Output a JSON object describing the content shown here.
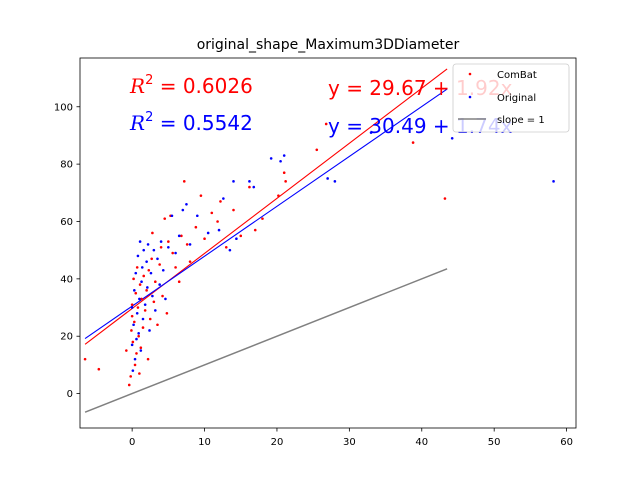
{
  "chart_data": {
    "type": "scatter",
    "title": "original_shape_Maximum3DDiameter",
    "xlabel": "",
    "ylabel": "",
    "xlim": [
      -7.2,
      61.3
    ],
    "ylim": [
      -12,
      117
    ],
    "xticks": [
      0,
      10,
      20,
      30,
      40,
      50,
      60
    ],
    "yticks": [
      0,
      20,
      40,
      60,
      80,
      100
    ],
    "xtick_labels": [
      "0",
      "10",
      "20",
      "30",
      "40",
      "50",
      "60"
    ],
    "ytick_labels": [
      "0",
      "20",
      "40",
      "60",
      "80",
      "100"
    ],
    "grid": false,
    "legend_position": "top-right",
    "legend": [
      {
        "label": "ComBat",
        "color": "#ff0000",
        "kind": "marker"
      },
      {
        "label": "Original",
        "color": "#0000ff",
        "kind": "marker"
      },
      {
        "label": "slope = 1",
        "color": "#808080",
        "kind": "line"
      }
    ],
    "annotations": {
      "r2_combat": {
        "prefix": "R",
        "sup": "2",
        "value": " = 0.6026",
        "color": "#ff0000"
      },
      "r2_original": {
        "prefix": "R",
        "sup": "2",
        "value": " = 0.5542",
        "color": "#0000ff"
      },
      "eq_combat": {
        "text": "y = 29.67 + 1.92x",
        "color": "#ff0000"
      },
      "eq_original": {
        "text": "y = 30.49 + 1.74x",
        "color": "#0000ff"
      }
    },
    "fit_lines": [
      {
        "name": "ComBat",
        "color": "#ff0000",
        "intercept": 29.67,
        "slope": 1.92,
        "x_range": [
          -6.5,
          43.5
        ]
      },
      {
        "name": "Original",
        "color": "#0000ff",
        "intercept": 30.49,
        "slope": 1.74,
        "x_range": [
          -6.5,
          43.5
        ]
      },
      {
        "name": "slope = 1",
        "color": "#808080",
        "intercept": 0,
        "slope": 1,
        "x_range": [
          -6.5,
          43.5
        ]
      }
    ],
    "series": [
      {
        "name": "ComBat",
        "color": "#ff0000",
        "points": [
          [
            -6.5,
            12
          ],
          [
            -4.6,
            8.5
          ],
          [
            -0.8,
            15
          ],
          [
            -0.4,
            3
          ],
          [
            -0.2,
            6
          ],
          [
            -0.1,
            22
          ],
          [
            0,
            27
          ],
          [
            0,
            31
          ],
          [
            0.1,
            18
          ],
          [
            0.2,
            40
          ],
          [
            0.3,
            25
          ],
          [
            0.4,
            10
          ],
          [
            0.5,
            35
          ],
          [
            0.6,
            14
          ],
          [
            0.7,
            44
          ],
          [
            0.8,
            30
          ],
          [
            0.9,
            20
          ],
          [
            1.0,
            7
          ],
          [
            1.1,
            38
          ],
          [
            1.2,
            16
          ],
          [
            1.3,
            33
          ],
          [
            1.5,
            23
          ],
          [
            1.6,
            41
          ],
          [
            1.8,
            29
          ],
          [
            2.0,
            36
          ],
          [
            2.2,
            12
          ],
          [
            2.3,
            43
          ],
          [
            2.5,
            26
          ],
          [
            2.7,
            47
          ],
          [
            2.8,
            56
          ],
          [
            3.0,
            32
          ],
          [
            3.2,
            39
          ],
          [
            3.5,
            24
          ],
          [
            3.8,
            45
          ],
          [
            4.0,
            51
          ],
          [
            4.2,
            34
          ],
          [
            4.5,
            61
          ],
          [
            4.8,
            28
          ],
          [
            5.0,
            53
          ],
          [
            5.3,
            62
          ],
          [
            5.6,
            49
          ],
          [
            6.0,
            44
          ],
          [
            6.5,
            39
          ],
          [
            6.8,
            55
          ],
          [
            7.2,
            74
          ],
          [
            7.6,
            52
          ],
          [
            8.0,
            46
          ],
          [
            8.8,
            58
          ],
          [
            9.5,
            69
          ],
          [
            10.0,
            54
          ],
          [
            11.0,
            63
          ],
          [
            11.8,
            60
          ],
          [
            12.2,
            67
          ],
          [
            13.0,
            51
          ],
          [
            14.0,
            64
          ],
          [
            15.0,
            55
          ],
          [
            16.2,
            72
          ],
          [
            17.0,
            57
          ],
          [
            18.0,
            61
          ],
          [
            20.2,
            69
          ],
          [
            21.0,
            77
          ],
          [
            21.2,
            74
          ],
          [
            25.5,
            85
          ],
          [
            26.8,
            94
          ],
          [
            38.8,
            87.5
          ],
          [
            43.2,
            68
          ]
        ]
      },
      {
        "name": "Original",
        "color": "#0000ff",
        "points": [
          [
            0,
            17
          ],
          [
            0,
            30
          ],
          [
            0.1,
            8
          ],
          [
            0.2,
            24
          ],
          [
            0.3,
            36
          ],
          [
            0.4,
            12
          ],
          [
            0.5,
            42
          ],
          [
            0.6,
            19
          ],
          [
            0.7,
            28
          ],
          [
            0.8,
            48
          ],
          [
            0.9,
            21
          ],
          [
            1.0,
            33
          ],
          [
            1.1,
            53
          ],
          [
            1.2,
            15
          ],
          [
            1.3,
            39
          ],
          [
            1.4,
            44
          ],
          [
            1.5,
            26
          ],
          [
            1.6,
            50
          ],
          [
            1.8,
            31
          ],
          [
            2.0,
            46
          ],
          [
            2.1,
            37
          ],
          [
            2.2,
            52
          ],
          [
            2.4,
            22
          ],
          [
            2.6,
            42
          ],
          [
            2.8,
            34
          ],
          [
            3.0,
            50
          ],
          [
            3.2,
            29
          ],
          [
            3.5,
            47
          ],
          [
            3.8,
            38
          ],
          [
            4.0,
            53
          ],
          [
            4.3,
            43
          ],
          [
            4.6,
            33
          ],
          [
            5.0,
            51
          ],
          [
            5.5,
            62
          ],
          [
            6.0,
            49
          ],
          [
            6.5,
            55
          ],
          [
            7.0,
            64
          ],
          [
            7.5,
            66
          ],
          [
            8.0,
            52
          ],
          [
            9.0,
            62
          ],
          [
            10.5,
            56
          ],
          [
            12.0,
            57
          ],
          [
            12.6,
            68
          ],
          [
            13.5,
            50
          ],
          [
            14.0,
            74
          ],
          [
            14.4,
            54
          ],
          [
            16.2,
            74
          ],
          [
            16.8,
            72
          ],
          [
            19.2,
            82
          ],
          [
            20.5,
            81
          ],
          [
            21.0,
            83
          ],
          [
            27.0,
            75
          ],
          [
            28.0,
            74
          ],
          [
            33.0,
            91
          ],
          [
            44.2,
            89
          ],
          [
            58.2,
            74
          ]
        ]
      }
    ]
  }
}
